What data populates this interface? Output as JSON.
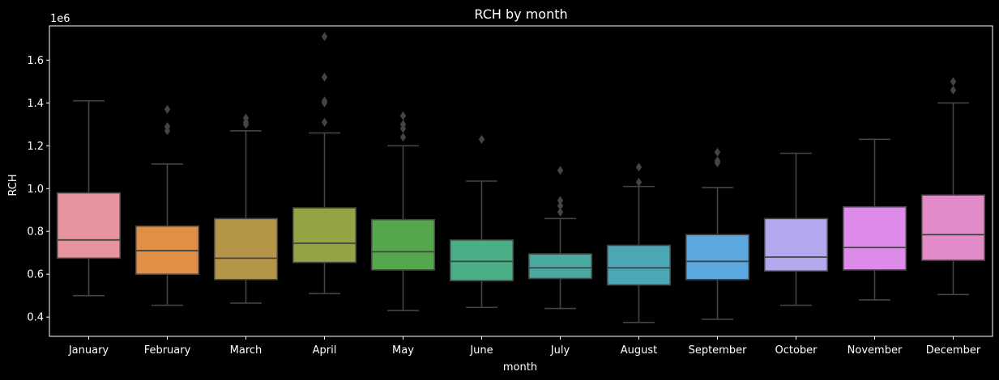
{
  "chart_data": {
    "type": "box",
    "title": "RCH by month",
    "xlabel": "month",
    "ylabel": "RCH",
    "y_offset_label": "1e6",
    "ylim": [
      0.31,
      1.76
    ],
    "yticks": [
      0.4,
      0.6,
      0.8,
      1.0,
      1.2,
      1.4,
      1.6
    ],
    "grid": false,
    "legend": "none",
    "colors": {
      "background": "#000000",
      "axes": "#ffffff",
      "box_edge": "#444444"
    },
    "categories": [
      "January",
      "February",
      "March",
      "April",
      "May",
      "June",
      "July",
      "August",
      "September",
      "October",
      "November",
      "December"
    ],
    "boxes": [
      {
        "category": "January",
        "color": "#E8949F",
        "whisker_low": 0.5,
        "q1": 0.675,
        "median": 0.76,
        "q3": 0.98,
        "whisker_high": 1.41,
        "outliers": []
      },
      {
        "category": "February",
        "color": "#E18E47",
        "whisker_low": 0.455,
        "q1": 0.6,
        "median": 0.71,
        "q3": 0.825,
        "whisker_high": 1.115,
        "outliers": [
          1.27,
          1.29,
          1.37
        ]
      },
      {
        "category": "March",
        "color": "#B59648",
        "whisker_low": 0.465,
        "q1": 0.575,
        "median": 0.675,
        "q3": 0.86,
        "whisker_high": 1.27,
        "outliers": [
          1.3,
          1.31,
          1.33
        ]
      },
      {
        "category": "April",
        "color": "#94A344",
        "whisker_low": 0.51,
        "q1": 0.655,
        "median": 0.745,
        "q3": 0.91,
        "whisker_high": 1.26,
        "outliers": [
          1.31,
          1.4,
          1.41,
          1.52,
          1.71
        ]
      },
      {
        "category": "May",
        "color": "#55A64C",
        "whisker_low": 0.43,
        "q1": 0.62,
        "median": 0.705,
        "q3": 0.855,
        "whisker_high": 1.2,
        "outliers": [
          1.24,
          1.28,
          1.3,
          1.34
        ]
      },
      {
        "category": "June",
        "color": "#4AAE87",
        "whisker_low": 0.445,
        "q1": 0.57,
        "median": 0.66,
        "q3": 0.76,
        "whisker_high": 1.035,
        "outliers": [
          1.23
        ]
      },
      {
        "category": "July",
        "color": "#4AA99E",
        "whisker_low": 0.44,
        "q1": 0.58,
        "median": 0.63,
        "q3": 0.695,
        "whisker_high": 0.86,
        "outliers": [
          0.89,
          0.92,
          0.945,
          1.085
        ]
      },
      {
        "category": "August",
        "color": "#4BA6B5",
        "whisker_low": 0.375,
        "q1": 0.55,
        "median": 0.63,
        "q3": 0.735,
        "whisker_high": 1.01,
        "outliers": [
          1.03,
          1.1
        ]
      },
      {
        "category": "September",
        "color": "#5AA8DE",
        "whisker_low": 0.39,
        "q1": 0.575,
        "median": 0.66,
        "q3": 0.785,
        "whisker_high": 1.005,
        "outliers": [
          1.12,
          1.13,
          1.17
        ]
      },
      {
        "category": "October",
        "color": "#B2A8EE",
        "whisker_low": 0.455,
        "q1": 0.615,
        "median": 0.68,
        "q3": 0.86,
        "whisker_high": 1.165,
        "outliers": []
      },
      {
        "category": "November",
        "color": "#DD8AEA",
        "whisker_low": 0.48,
        "q1": 0.62,
        "median": 0.725,
        "q3": 0.915,
        "whisker_high": 1.23,
        "outliers": []
      },
      {
        "category": "December",
        "color": "#E38BC9",
        "whisker_low": 0.505,
        "q1": 0.665,
        "median": 0.785,
        "q3": 0.97,
        "whisker_high": 1.4,
        "outliers": [
          1.46,
          1.5
        ]
      }
    ]
  }
}
